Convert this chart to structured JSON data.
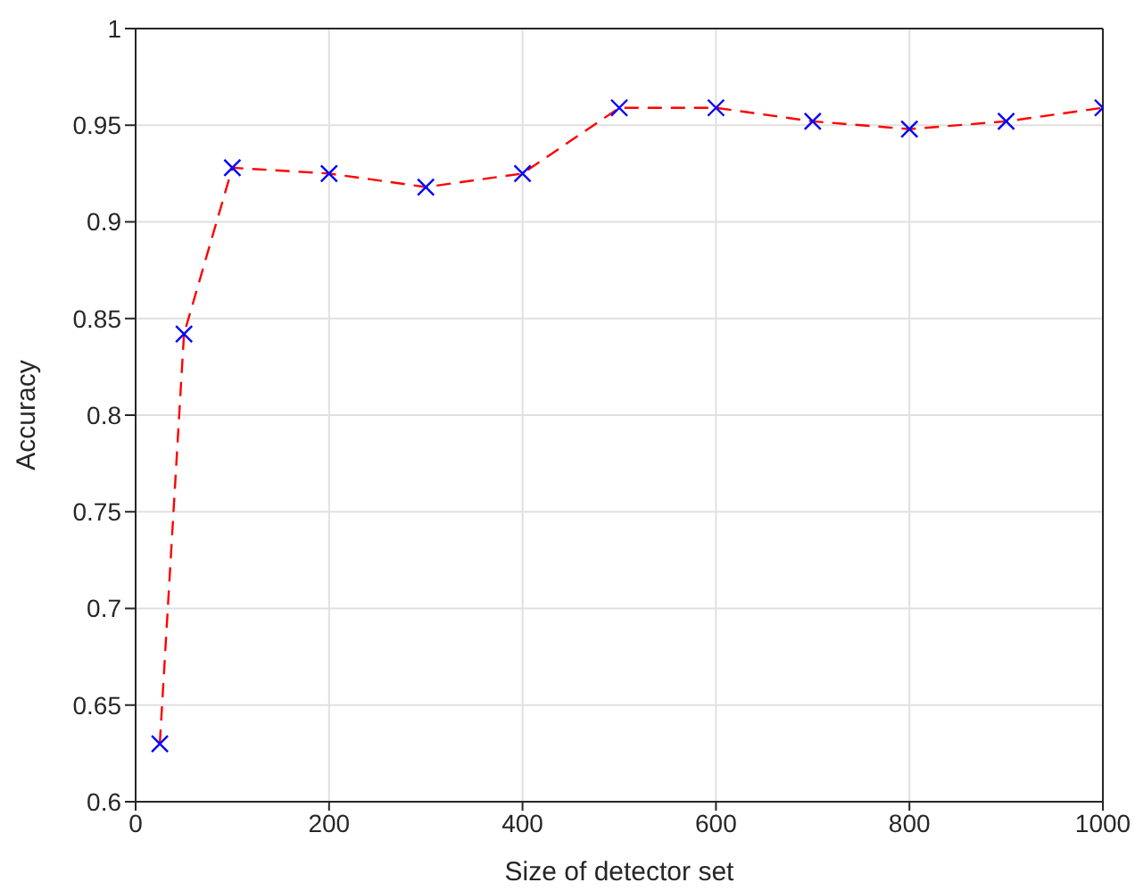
{
  "chart_data": {
    "type": "line",
    "xlabel": "Size of detector set",
    "ylabel": "Accuracy",
    "x": [
      25,
      50,
      100,
      200,
      300,
      400,
      500,
      600,
      700,
      800,
      900,
      1000
    ],
    "series": [
      {
        "color": "#ff0000",
        "line_style": "dashed",
        "marker": "none",
        "values": [
          0.63,
          0.842,
          0.928,
          0.925,
          0.918,
          0.925,
          0.959,
          0.959,
          0.952,
          0.948,
          0.952,
          0.959
        ]
      },
      {
        "type": "scatter",
        "color": "#0000ff",
        "marker": "cross",
        "values": [
          0.63,
          0.842,
          0.928,
          0.925,
          0.918,
          0.925,
          0.959,
          0.959,
          0.952,
          0.948,
          0.952,
          0.959
        ]
      }
    ],
    "xlim": [
      0,
      1000
    ],
    "xticks": [
      0,
      200,
      400,
      600,
      800,
      1000
    ],
    "ylim": [
      0.6,
      1
    ],
    "yticks": [
      0.6,
      0.65,
      0.7,
      0.75,
      0.8,
      0.85,
      0.9,
      0.95,
      1
    ],
    "grid": true
  }
}
